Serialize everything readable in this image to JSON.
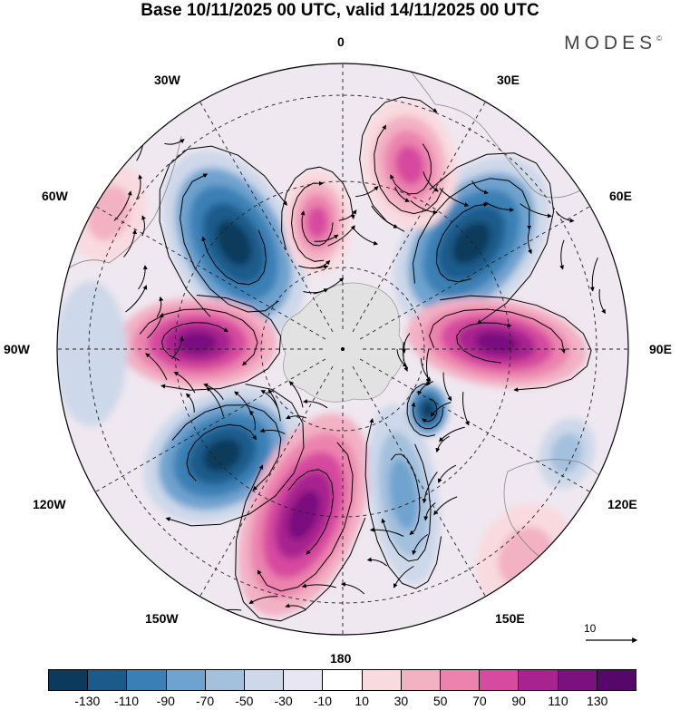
{
  "title": "Base 10/11/2025 00 UTC, valid 14/11/2025 00 UTC",
  "brand": {
    "name": "MODES",
    "mark": "©"
  },
  "longitude_labels": {
    "l0": "0",
    "l30e": "30E",
    "l60e": "60E",
    "l90e": "90E",
    "l120e": "120E",
    "l150e": "150E",
    "l180": "180",
    "l150w": "150W",
    "l120w": "120W",
    "l90w": "90W",
    "l60w": "60W",
    "l30w": "30W"
  },
  "reference_vector": {
    "label": "10"
  },
  "colorbar": {
    "colors": [
      "#0c3a5c",
      "#1a5b8c",
      "#3a80b5",
      "#6fa3cf",
      "#a3c0dd",
      "#cdd8ea",
      "#e8e6f2",
      "#ffffff",
      "#f9dadf",
      "#f3b1c4",
      "#ec83ae",
      "#d64a9f",
      "#a8238f",
      "#7a117f",
      "#55086a"
    ],
    "ticks": [
      "-130",
      "-110",
      "-90",
      "-70",
      "-50",
      "-30",
      "-10",
      "10",
      "30",
      "50",
      "70",
      "90",
      "110",
      "130"
    ]
  },
  "map_data": {
    "projection": "south-polar-stereographic",
    "field": "shaded anomaly with wind vectors",
    "anomaly_centers": [
      {
        "sign": "negative",
        "near": "30W-60W"
      },
      {
        "sign": "negative",
        "near": "60E"
      },
      {
        "sign": "positive",
        "near": "90E"
      },
      {
        "sign": "positive",
        "near": "90W"
      },
      {
        "sign": "negative",
        "near": "120W"
      },
      {
        "sign": "positive",
        "near": "150W-180"
      },
      {
        "sign": "negative",
        "near": "150E-180"
      },
      {
        "sign": "positive",
        "near": "15E"
      }
    ]
  }
}
